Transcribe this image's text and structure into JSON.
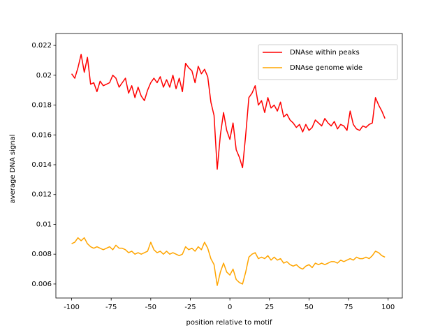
{
  "chart_data": {
    "type": "line",
    "xlabel": "position relative to motif",
    "ylabel": "average DNA signal",
    "x": [
      -100,
      -98,
      -96,
      -94,
      -92,
      -90,
      -88,
      -86,
      -84,
      -82,
      -80,
      -78,
      -76,
      -74,
      -72,
      -70,
      -68,
      -66,
      -64,
      -62,
      -60,
      -58,
      -56,
      -54,
      -52,
      -50,
      -48,
      -46,
      -44,
      -42,
      -40,
      -38,
      -36,
      -34,
      -32,
      -30,
      -28,
      -26,
      -24,
      -22,
      -20,
      -18,
      -16,
      -14,
      -12,
      -10,
      -8,
      -6,
      -4,
      -2,
      0,
      2,
      4,
      6,
      8,
      10,
      12,
      14,
      16,
      18,
      20,
      22,
      24,
      26,
      28,
      30,
      32,
      34,
      36,
      38,
      40,
      42,
      44,
      46,
      48,
      50,
      52,
      54,
      56,
      58,
      60,
      62,
      64,
      66,
      68,
      70,
      72,
      74,
      76,
      78,
      80,
      82,
      84,
      86,
      88,
      90,
      92,
      94,
      96,
      98
    ],
    "series": [
      {
        "name": "DNAse within peaks",
        "color": "#ff0000",
        "values": [
          0.0201,
          0.0198,
          0.0205,
          0.0214,
          0.0202,
          0.0212,
          0.0194,
          0.0195,
          0.0189,
          0.0196,
          0.0193,
          0.0194,
          0.0195,
          0.02,
          0.0198,
          0.0192,
          0.0195,
          0.0198,
          0.0188,
          0.0193,
          0.0185,
          0.0192,
          0.0186,
          0.0183,
          0.019,
          0.0195,
          0.0198,
          0.0195,
          0.0199,
          0.0192,
          0.0197,
          0.0192,
          0.02,
          0.0191,
          0.0198,
          0.0189,
          0.0208,
          0.0205,
          0.0203,
          0.0195,
          0.0206,
          0.0201,
          0.0204,
          0.0199,
          0.0182,
          0.0173,
          0.0137,
          0.016,
          0.0175,
          0.0163,
          0.0157,
          0.0168,
          0.015,
          0.0145,
          0.0138,
          0.016,
          0.0185,
          0.0188,
          0.0193,
          0.018,
          0.0183,
          0.0175,
          0.0185,
          0.0178,
          0.018,
          0.0176,
          0.0182,
          0.0172,
          0.0174,
          0.017,
          0.0168,
          0.0165,
          0.0167,
          0.0162,
          0.0167,
          0.0163,
          0.0165,
          0.017,
          0.0168,
          0.0166,
          0.0171,
          0.0168,
          0.0166,
          0.0169,
          0.0164,
          0.0167,
          0.0166,
          0.0163,
          0.0176,
          0.0167,
          0.0164,
          0.0163,
          0.0166,
          0.0165,
          0.0167,
          0.0168,
          0.0185,
          0.018,
          0.0176,
          0.0171
        ]
      },
      {
        "name": "DNAse genome wide",
        "color": "#ffa500",
        "values": [
          0.0087,
          0.0088,
          0.0091,
          0.0089,
          0.0091,
          0.0087,
          0.0085,
          0.0084,
          0.0085,
          0.0084,
          0.0083,
          0.0084,
          0.0085,
          0.0083,
          0.0086,
          0.0084,
          0.0084,
          0.0083,
          0.0081,
          0.0082,
          0.008,
          0.0081,
          0.008,
          0.0081,
          0.0082,
          0.0088,
          0.0083,
          0.0081,
          0.0082,
          0.008,
          0.0082,
          0.008,
          0.0081,
          0.008,
          0.0079,
          0.008,
          0.0085,
          0.0083,
          0.0084,
          0.0082,
          0.0085,
          0.0083,
          0.0088,
          0.0084,
          0.0077,
          0.0073,
          0.0059,
          0.0068,
          0.0074,
          0.0068,
          0.0066,
          0.007,
          0.0063,
          0.0061,
          0.006,
          0.0068,
          0.0078,
          0.008,
          0.0081,
          0.0077,
          0.0078,
          0.0077,
          0.0079,
          0.0076,
          0.0078,
          0.0076,
          0.0077,
          0.0074,
          0.0075,
          0.0073,
          0.0072,
          0.0073,
          0.0071,
          0.007,
          0.0072,
          0.0073,
          0.0071,
          0.0074,
          0.0073,
          0.0074,
          0.0073,
          0.0074,
          0.0075,
          0.0075,
          0.0074,
          0.0076,
          0.0075,
          0.0076,
          0.0077,
          0.0076,
          0.0078,
          0.0077,
          0.0077,
          0.0078,
          0.0077,
          0.0079,
          0.0082,
          0.0081,
          0.0079,
          0.0078
        ]
      }
    ],
    "xlim": [
      -109.95,
      108.95
    ],
    "xticks": [
      -100,
      -75,
      -50,
      -25,
      0,
      25,
      50,
      75,
      100
    ],
    "ylim": [
      0.00506,
      0.0228
    ],
    "yticks": [
      0.006,
      0.008,
      0.01,
      0.012,
      0.014,
      0.016,
      0.018,
      0.02,
      0.022
    ],
    "legend": "upper right"
  }
}
